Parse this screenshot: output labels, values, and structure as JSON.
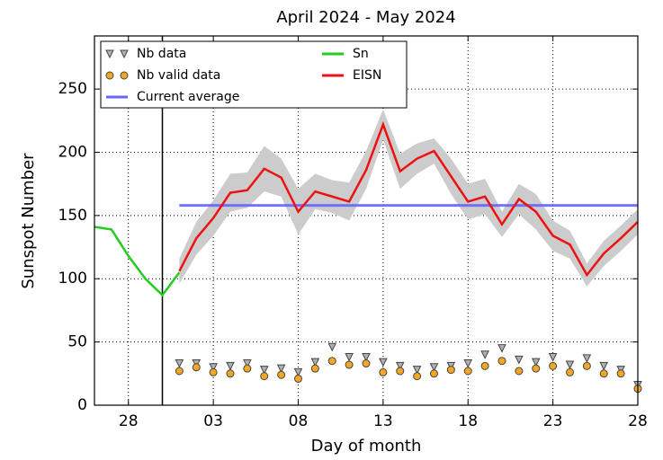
{
  "chart_data": {
    "type": "line",
    "title": "April 2024 - May 2024",
    "x_label": "Day of month",
    "y_label": "Sunspot Number",
    "categories": [
      null,
      null,
      "28",
      null,
      null,
      null,
      null,
      "03",
      null,
      null,
      null,
      null,
      "08",
      null,
      null,
      null,
      null,
      "13",
      null,
      null,
      null,
      null,
      "18",
      null,
      null,
      null,
      null,
      "23",
      null,
      null,
      null,
      null,
      "28"
    ],
    "ylim": [
      0,
      292
    ],
    "yticks": [
      0,
      50,
      100,
      150,
      200,
      250
    ],
    "grid": true,
    "vline_category": 4,
    "series": [
      {
        "name": "Nb data",
        "marker": "triangle",
        "color": "#b0b0b0",
        "values": [
          null,
          null,
          null,
          null,
          null,
          33,
          33,
          30,
          31,
          33,
          28,
          29,
          26,
          34,
          46,
          38,
          38,
          34,
          31,
          28,
          30,
          31,
          33,
          40,
          45,
          36,
          34,
          38,
          32,
          37,
          31,
          28,
          16
        ]
      },
      {
        "name": "Nb valid data",
        "marker": "circle",
        "color": "#f5a623",
        "values": [
          null,
          null,
          null,
          null,
          null,
          27,
          30,
          26,
          25,
          29,
          23,
          24,
          21,
          29,
          35,
          32,
          33,
          26,
          27,
          23,
          25,
          28,
          27,
          31,
          35,
          27,
          29,
          31,
          26,
          31,
          25,
          25,
          13
        ]
      },
      {
        "name": "Sn",
        "marker": "line",
        "color": "#22cc22",
        "values": [
          141,
          139,
          118,
          100,
          87,
          105,
          null,
          null,
          null,
          null,
          null,
          null,
          null,
          null,
          null,
          null,
          null,
          null,
          null,
          null,
          null,
          null,
          null,
          null,
          null,
          null,
          null,
          null,
          null,
          null,
          null,
          null,
          null
        ]
      },
      {
        "name": "EISN",
        "marker": "line",
        "color": "#ee1111",
        "band_color": "#cccccc",
        "values": [
          null,
          null,
          null,
          null,
          null,
          106,
          132,
          148,
          168,
          170,
          187,
          180,
          153,
          169,
          165,
          161,
          186,
          222,
          185,
          195,
          201,
          181,
          161,
          165,
          143,
          163,
          153,
          134,
          127,
          103,
          120,
          132,
          145
        ],
        "error": [
          null,
          null,
          null,
          null,
          null,
          10,
          13,
          14,
          15,
          14,
          18,
          15,
          18,
          14,
          13,
          15,
          15,
          12,
          14,
          12,
          10,
          14,
          14,
          14,
          10,
          12,
          14,
          12,
          11,
          9,
          10,
          10,
          10
        ]
      }
    ],
    "current_average": {
      "name": "Current average",
      "value": 158,
      "color": "#6666ff"
    }
  }
}
